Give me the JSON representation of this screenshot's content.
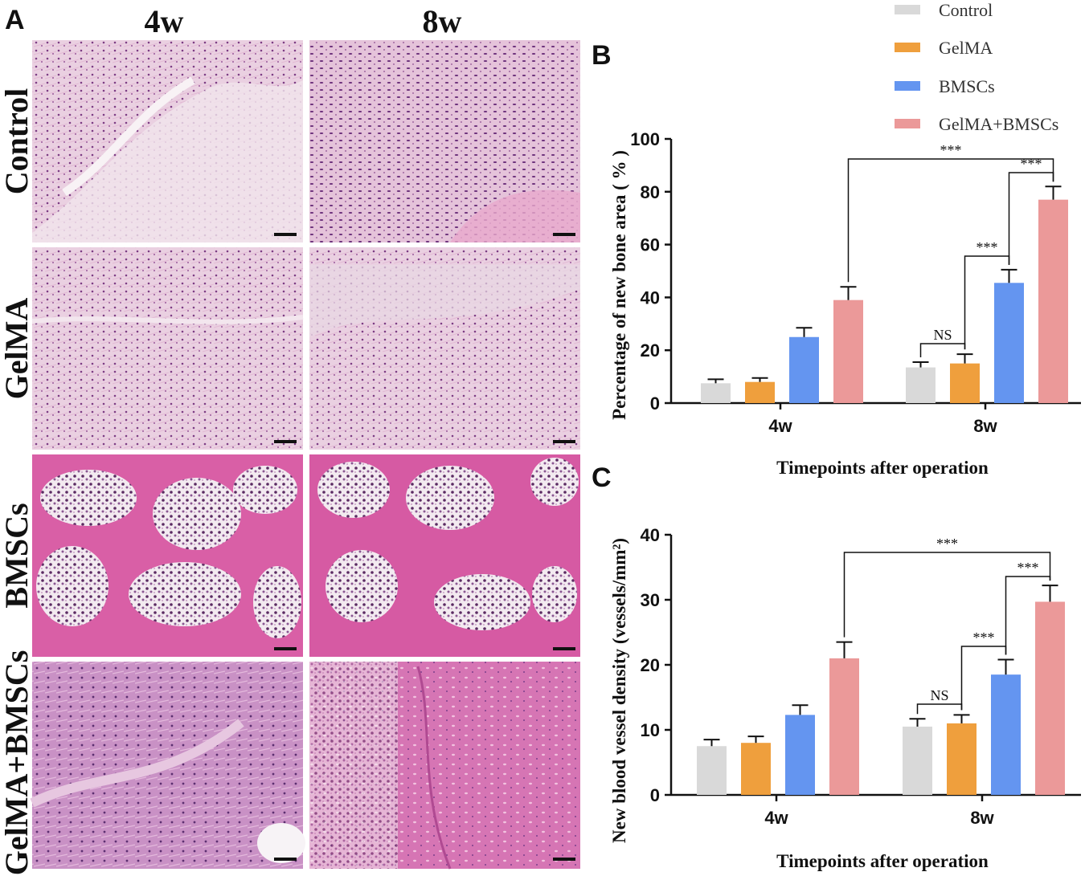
{
  "panel_labels": {
    "a": "A",
    "b": "B",
    "c": "C"
  },
  "micrographs": {
    "column_headers": [
      "4w",
      "8w"
    ],
    "row_headers": [
      "Control",
      "GelMA",
      "BMSCs",
      "GelMA+BMSCs"
    ]
  },
  "legend": [
    {
      "label": "Control",
      "color": "#d9d9d9"
    },
    {
      "label": "GelMA",
      "color": "#ef9f3d"
    },
    {
      "label": "BMSCs",
      "color": "#6495f0"
    },
    {
      "label": "GelMA+BMSCs",
      "color": "#eb9999"
    }
  ],
  "chart_data": [
    {
      "type": "bar",
      "panel": "B",
      "categories": [
        "4w",
        "8w"
      ],
      "series": [
        {
          "name": "Control",
          "values": [
            7.5,
            13.5
          ],
          "errors": [
            1.5,
            2
          ]
        },
        {
          "name": "GelMA",
          "values": [
            8,
            15
          ],
          "errors": [
            1.5,
            3.5
          ]
        },
        {
          "name": "BMSCs",
          "values": [
            25,
            45.5
          ],
          "errors": [
            3.5,
            5
          ]
        },
        {
          "name": "GelMA+BMSCs",
          "values": [
            39,
            77
          ],
          "errors": [
            5,
            5
          ]
        }
      ],
      "xlabel": "Timepoints after operation",
      "ylabel": "Percentage of new bone area ( % )",
      "ylim": [
        0,
        100
      ],
      "yticks": [
        0,
        20,
        40,
        60,
        80,
        100
      ],
      "grid": false,
      "legend_position": "top-right",
      "significance": [
        {
          "label": "NS",
          "from": "8w Control",
          "to": "8w GelMA"
        },
        {
          "label": "***",
          "from": "8w GelMA",
          "to": "8w BMSCs"
        },
        {
          "label": "***",
          "from": "8w BMSCs",
          "to": "8w GelMA+BMSCs"
        },
        {
          "label": "***",
          "from": "4w GelMA+BMSCs",
          "to": "8w GelMA+BMSCs"
        }
      ]
    },
    {
      "type": "bar",
      "panel": "C",
      "categories": [
        "4w",
        "8w"
      ],
      "series": [
        {
          "name": "Control",
          "values": [
            7.5,
            10.5
          ],
          "errors": [
            1,
            1.2
          ]
        },
        {
          "name": "GelMA",
          "values": [
            8,
            11
          ],
          "errors": [
            1,
            1.3
          ]
        },
        {
          "name": "BMSCs",
          "values": [
            12.3,
            18.5
          ],
          "errors": [
            1.5,
            2.3
          ]
        },
        {
          "name": "GelMA+BMSCs",
          "values": [
            21,
            29.7
          ],
          "errors": [
            2.5,
            2.5
          ]
        }
      ],
      "xlabel": "Timepoints after operation",
      "ylabel": "New blood vessel density (vessels/mm²)",
      "ylim": [
        0,
        40
      ],
      "yticks": [
        0,
        10,
        20,
        30,
        40
      ],
      "grid": false,
      "significance": [
        {
          "label": "NS",
          "from": "8w Control",
          "to": "8w GelMA"
        },
        {
          "label": "***",
          "from": "8w GelMA",
          "to": "8w BMSCs"
        },
        {
          "label": "***",
          "from": "8w BMSCs",
          "to": "8w GelMA+BMSCs"
        },
        {
          "label": "***",
          "from": "4w GelMA+BMSCs",
          "to": "8w GelMA+BMSCs"
        }
      ]
    }
  ]
}
